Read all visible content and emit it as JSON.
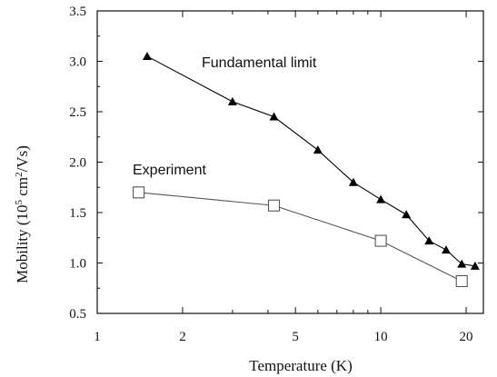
{
  "chart_data": {
    "type": "line",
    "xscale": "log",
    "xlabel": "Temperature (K)",
    "ylabel": "Mobility (10",
    "ylabel_sup1": "5",
    "ylabel_mid": " cm",
    "ylabel_sup2": "2",
    "ylabel_end": "/Vs)",
    "xlim": [
      1,
      23
    ],
    "ylim": [
      0.5,
      3.5
    ],
    "xticks": [
      1,
      2,
      5,
      10,
      20
    ],
    "xtick_labels": [
      "1",
      "2",
      "5",
      "10",
      "20"
    ],
    "yticks": [
      0.5,
      1.0,
      1.5,
      2.0,
      2.5,
      3.0,
      3.5
    ],
    "ytick_labels": [
      "0.5",
      "1.0",
      "1.5",
      "2.0",
      "2.5",
      "3.0",
      "3.5"
    ],
    "grid": false,
    "series": [
      {
        "name": "Fundamental limit",
        "marker": "filled-triangle",
        "color": "#000000",
        "x": [
          1.5,
          3.0,
          4.2,
          6.0,
          8.0,
          10.0,
          12.3,
          14.8,
          17.0,
          19.3,
          21.5
        ],
        "y": [
          3.05,
          2.6,
          2.45,
          2.12,
          1.8,
          1.63,
          1.48,
          1.22,
          1.13,
          0.99,
          0.97
        ]
      },
      {
        "name": "Experiment",
        "marker": "open-square",
        "color": "#555555",
        "x": [
          1.4,
          4.2,
          10.0,
          19.3
        ],
        "y": [
          1.7,
          1.57,
          1.22,
          0.82
        ]
      }
    ]
  }
}
